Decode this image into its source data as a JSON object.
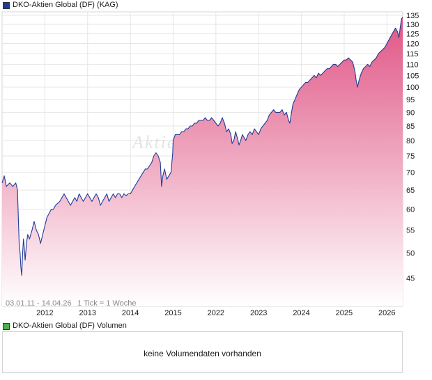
{
  "legend": {
    "price_label": "DKO-Aktien Global (DF) (KAG)",
    "price_color": "#1f3b99",
    "volume_label": "DKO-Aktien Global (DF) Volumen",
    "volume_color": "#4caf50"
  },
  "volume": {
    "message": "keine Volumendaten vorhanden"
  },
  "chart_data": {
    "type": "area",
    "scale": "log",
    "ylim": [
      40,
      137
    ],
    "y_ticks": [
      45,
      50,
      55,
      60,
      65,
      70,
      75,
      80,
      85,
      90,
      95,
      100,
      105,
      110,
      115,
      120,
      125,
      130,
      135
    ],
    "x_ticks": [
      {
        "label": "2012",
        "t": 1.0
      },
      {
        "label": "2013",
        "t": 2.0
      },
      {
        "label": "2014",
        "t": 3.0
      },
      {
        "label": "2015",
        "t": 4.0
      },
      {
        "label": "2022",
        "t": 5.0
      },
      {
        "label": "2023",
        "t": 6.0
      },
      {
        "label": "2024",
        "t": 7.0
      },
      {
        "label": "2025",
        "t": 8.0
      },
      {
        "label": "2026",
        "t": 9.0
      }
    ],
    "date_range": "03.01.11 - 14.04.26",
    "tick_info": "1 Tick = 1 Woche",
    "watermark": "Aktien",
    "line_color": "#1f3b99",
    "fill_top_color": "#e05585",
    "fill_bottom_color": "#ffffff",
    "series": [
      {
        "points": [
          [
            0.0,
            67
          ],
          [
            0.05,
            69
          ],
          [
            0.1,
            66
          ],
          [
            0.18,
            67
          ],
          [
            0.25,
            66
          ],
          [
            0.32,
            67
          ],
          [
            0.36,
            65
          ],
          [
            0.38,
            58
          ],
          [
            0.4,
            52
          ],
          [
            0.42,
            50
          ],
          [
            0.44,
            47
          ],
          [
            0.46,
            45.5
          ],
          [
            0.48,
            50
          ],
          [
            0.5,
            53
          ],
          [
            0.52,
            51
          ],
          [
            0.54,
            48.5
          ],
          [
            0.57,
            52
          ],
          [
            0.6,
            54
          ],
          [
            0.64,
            53
          ],
          [
            0.7,
            55
          ],
          [
            0.75,
            57
          ],
          [
            0.8,
            55
          ],
          [
            0.85,
            54
          ],
          [
            0.9,
            52
          ],
          [
            0.95,
            54
          ],
          [
            1.0,
            56
          ],
          [
            1.05,
            58
          ],
          [
            1.1,
            59
          ],
          [
            1.15,
            60
          ],
          [
            1.2,
            60
          ],
          [
            1.25,
            61
          ],
          [
            1.3,
            61.5
          ],
          [
            1.35,
            62
          ],
          [
            1.4,
            63
          ],
          [
            1.45,
            64
          ],
          [
            1.5,
            63
          ],
          [
            1.55,
            62
          ],
          [
            1.6,
            61
          ],
          [
            1.65,
            62
          ],
          [
            1.7,
            63
          ],
          [
            1.75,
            62
          ],
          [
            1.8,
            64
          ],
          [
            1.85,
            63
          ],
          [
            1.9,
            62
          ],
          [
            1.95,
            63
          ],
          [
            2.0,
            64
          ],
          [
            2.05,
            63
          ],
          [
            2.1,
            62
          ],
          [
            2.15,
            63
          ],
          [
            2.2,
            64
          ],
          [
            2.25,
            63
          ],
          [
            2.3,
            61
          ],
          [
            2.35,
            62
          ],
          [
            2.4,
            63
          ],
          [
            2.45,
            64
          ],
          [
            2.5,
            62
          ],
          [
            2.55,
            63
          ],
          [
            2.6,
            64
          ],
          [
            2.65,
            63
          ],
          [
            2.7,
            64
          ],
          [
            2.75,
            64
          ],
          [
            2.8,
            63
          ],
          [
            2.85,
            64
          ],
          [
            2.9,
            63.5
          ],
          [
            2.95,
            64
          ],
          [
            3.0,
            64
          ],
          [
            3.05,
            65
          ],
          [
            3.1,
            66
          ],
          [
            3.15,
            67
          ],
          [
            3.2,
            68
          ],
          [
            3.25,
            69
          ],
          [
            3.3,
            70
          ],
          [
            3.35,
            71
          ],
          [
            3.4,
            71
          ],
          [
            3.45,
            72
          ],
          [
            3.5,
            73
          ],
          [
            3.55,
            75
          ],
          [
            3.6,
            76
          ],
          [
            3.65,
            75
          ],
          [
            3.7,
            73
          ],
          [
            3.73,
            66
          ],
          [
            3.76,
            69
          ],
          [
            3.8,
            71
          ],
          [
            3.85,
            68
          ],
          [
            3.9,
            69
          ],
          [
            3.95,
            70
          ],
          [
            3.99,
            76
          ],
          [
            4.0,
            80
          ],
          [
            4.05,
            82
          ],
          [
            4.1,
            82
          ],
          [
            4.15,
            82
          ],
          [
            4.2,
            83
          ],
          [
            4.25,
            83
          ],
          [
            4.3,
            84
          ],
          [
            4.35,
            84
          ],
          [
            4.4,
            85
          ],
          [
            4.45,
            85
          ],
          [
            4.5,
            86
          ],
          [
            4.55,
            86
          ],
          [
            4.6,
            87
          ],
          [
            4.65,
            87
          ],
          [
            4.7,
            87
          ],
          [
            4.75,
            88
          ],
          [
            4.8,
            87
          ],
          [
            4.85,
            87
          ],
          [
            4.9,
            88
          ],
          [
            4.95,
            87
          ],
          [
            5.0,
            86
          ],
          [
            5.05,
            85
          ],
          [
            5.1,
            86
          ],
          [
            5.15,
            88
          ],
          [
            5.2,
            86
          ],
          [
            5.25,
            83
          ],
          [
            5.3,
            84
          ],
          [
            5.35,
            82
          ],
          [
            5.38,
            79
          ],
          [
            5.42,
            80
          ],
          [
            5.46,
            83
          ],
          [
            5.5,
            81
          ],
          [
            5.54,
            78.5
          ],
          [
            5.58,
            80
          ],
          [
            5.62,
            82
          ],
          [
            5.66,
            81
          ],
          [
            5.7,
            80
          ],
          [
            5.75,
            82
          ],
          [
            5.8,
            83
          ],
          [
            5.85,
            82
          ],
          [
            5.9,
            84
          ],
          [
            5.95,
            83
          ],
          [
            6.0,
            82
          ],
          [
            6.05,
            84
          ],
          [
            6.1,
            85
          ],
          [
            6.15,
            86
          ],
          [
            6.2,
            87
          ],
          [
            6.25,
            89
          ],
          [
            6.3,
            90
          ],
          [
            6.35,
            91
          ],
          [
            6.4,
            90
          ],
          [
            6.45,
            90
          ],
          [
            6.5,
            90
          ],
          [
            6.55,
            91
          ],
          [
            6.6,
            89
          ],
          [
            6.65,
            90
          ],
          [
            6.7,
            87
          ],
          [
            6.73,
            86
          ],
          [
            6.76,
            89
          ],
          [
            6.8,
            93
          ],
          [
            6.85,
            95
          ],
          [
            6.9,
            97
          ],
          [
            6.95,
            99
          ],
          [
            7.0,
            100
          ],
          [
            7.05,
            101
          ],
          [
            7.1,
            102
          ],
          [
            7.15,
            102
          ],
          [
            7.2,
            103
          ],
          [
            7.25,
            104
          ],
          [
            7.3,
            105
          ],
          [
            7.35,
            104
          ],
          [
            7.4,
            106
          ],
          [
            7.45,
            105
          ],
          [
            7.5,
            106
          ],
          [
            7.55,
            107
          ],
          [
            7.6,
            108
          ],
          [
            7.65,
            108
          ],
          [
            7.7,
            109
          ],
          [
            7.75,
            110
          ],
          [
            7.8,
            110
          ],
          [
            7.85,
            109
          ],
          [
            7.9,
            110
          ],
          [
            7.95,
            111
          ],
          [
            8.0,
            112
          ],
          [
            8.05,
            112
          ],
          [
            8.1,
            113
          ],
          [
            8.15,
            112
          ],
          [
            8.2,
            111
          ],
          [
            8.25,
            107
          ],
          [
            8.28,
            103
          ],
          [
            8.31,
            100
          ],
          [
            8.35,
            103
          ],
          [
            8.4,
            106
          ],
          [
            8.45,
            108
          ],
          [
            8.5,
            109
          ],
          [
            8.55,
            110
          ],
          [
            8.6,
            109
          ],
          [
            8.65,
            111
          ],
          [
            8.7,
            112
          ],
          [
            8.75,
            113
          ],
          [
            8.8,
            115
          ],
          [
            8.85,
            116
          ],
          [
            8.9,
            117
          ],
          [
            8.95,
            118
          ],
          [
            9.0,
            120
          ],
          [
            9.05,
            122
          ],
          [
            9.1,
            124
          ],
          [
            9.15,
            126
          ],
          [
            9.2,
            128
          ],
          [
            9.25,
            126
          ],
          [
            9.28,
            123
          ],
          [
            9.31,
            128
          ],
          [
            9.34,
            133
          ],
          [
            9.37,
            134
          ]
        ]
      }
    ]
  }
}
